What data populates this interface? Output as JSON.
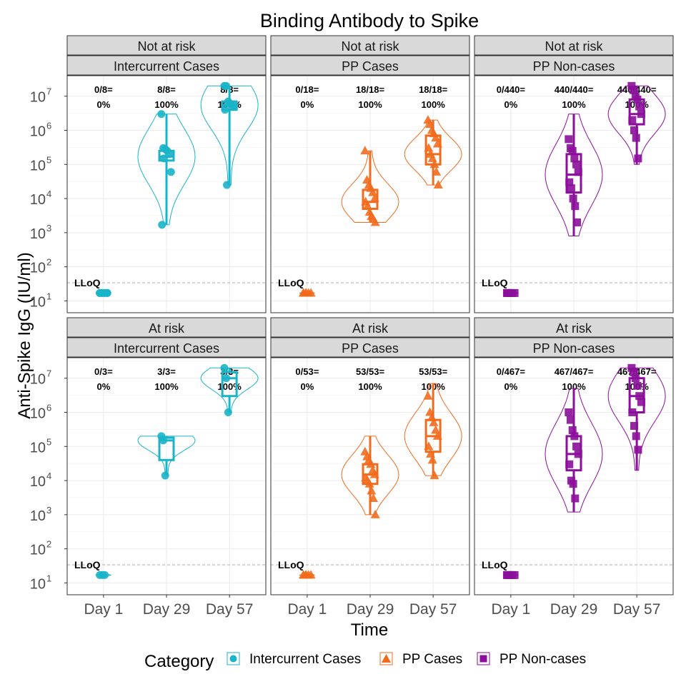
{
  "chart_data": {
    "type": "violin-box",
    "title": "Binding Antibody to Spike",
    "xlabel": "Time",
    "ylabel": "Anti-Spike IgG (IU/ml)",
    "y_scale": "log10",
    "ylim": [
      4.5,
      20000000
    ],
    "grid": true,
    "x_categories": [
      "Day 1",
      "Day 29",
      "Day 57"
    ],
    "y_tick_labels": [
      {
        "value": 10,
        "base": "10",
        "exp": "1"
      },
      {
        "value": 100,
        "base": "10",
        "exp": "2"
      },
      {
        "value": 1000,
        "base": "10",
        "exp": "3"
      },
      {
        "value": 10000,
        "base": "10",
        "exp": "4"
      },
      {
        "value": 100000,
        "base": "10",
        "exp": "5"
      },
      {
        "value": 1000000,
        "base": "10",
        "exp": "6"
      },
      {
        "value": 10000000,
        "base": "10",
        "exp": "7"
      }
    ],
    "lloq": {
      "value": 34,
      "label": "LLoQ"
    },
    "legend": {
      "title": "Category",
      "position": "bottom",
      "entries": [
        {
          "name": "Intercurrent Cases",
          "color": "#1ab4c8",
          "shape": "circle"
        },
        {
          "name": "PP Cases",
          "color": "#f26b1d",
          "shape": "triangle"
        },
        {
          "name": "PP Non-cases",
          "color": "#8b0f9a",
          "shape": "square"
        }
      ]
    },
    "panels": [
      {
        "risk": "Not at risk",
        "group": "Intercurrent Cases",
        "color": "#1ab4c8",
        "shape": "circle",
        "counts": [
          {
            "frac": "0/8=",
            "pct": "0%"
          },
          {
            "frac": "8/8=",
            "pct": "100%"
          },
          {
            "frac": "8/8=",
            "pct": "100%"
          }
        ],
        "days": [
          {
            "points": [
              17,
              17,
              17,
              17,
              17,
              17,
              17,
              17
            ],
            "min": 16,
            "max": 18,
            "q1": 16.8,
            "median": 17,
            "q3": 17.3
          },
          {
            "points": [
              3000000,
              300000,
              280000,
              250000,
              200000,
              60000,
              1700,
              150000
            ],
            "min": 1700,
            "max": 3000000,
            "q1": 130000,
            "median": 170000,
            "q3": 250000
          },
          {
            "points": [
              20000000,
              20000000,
              7000000,
              6000000,
              5000000,
              5000000,
              4000000,
              25000
            ],
            "min": 25000,
            "max": 20000000,
            "q1": 4000000,
            "median": 5500000,
            "q3": 7000000
          }
        ]
      },
      {
        "risk": "Not at risk",
        "group": "PP Cases",
        "color": "#f26b1d",
        "shape": "triangle",
        "counts": [
          {
            "frac": "0/18=",
            "pct": "0%"
          },
          {
            "frac": "18/18=",
            "pct": "100%"
          },
          {
            "frac": "18/18=",
            "pct": "100%"
          }
        ],
        "days": [
          {
            "points": [
              17,
              17,
              17,
              17,
              17,
              17
            ],
            "min": 16,
            "max": 18,
            "q1": 16.8,
            "median": 17,
            "q3": 17.3
          },
          {
            "points": [
              250000,
              35000,
              25000,
              20000,
              15000,
              10000,
              8000,
              6000,
              4000,
              3000,
              2500,
              2000
            ],
            "min": 2000,
            "max": 250000,
            "q1": 5000,
            "median": 8000,
            "q3": 18000
          },
          {
            "points": [
              2000000,
              1500000,
              1000000,
              800000,
              600000,
              400000,
              300000,
              200000,
              150000,
              100000,
              60000,
              25000
            ],
            "min": 25000,
            "max": 2000000,
            "q1": 100000,
            "median": 200000,
            "q3": 700000
          }
        ]
      },
      {
        "risk": "Not at risk",
        "group": "PP Non-cases",
        "color": "#8b0f9a",
        "shape": "square",
        "counts": [
          {
            "frac": "0/440=",
            "pct": "0%"
          },
          {
            "frac": "440/440=",
            "pct": "100%"
          },
          {
            "frac": "440/440=",
            "pct": "100%"
          }
        ],
        "days": [
          {
            "points": [
              17,
              17,
              17,
              17,
              17,
              17
            ],
            "min": 16,
            "max": 18,
            "q1": 16.8,
            "median": 17,
            "q3": 17.3
          },
          {
            "points": [
              550000,
              300000,
              250000,
              150000,
              100000,
              60000,
              30000,
              20000,
              10000,
              6000,
              2000
            ],
            "min": 800,
            "max": 3000000,
            "q1": 15000,
            "median": 50000,
            "q3": 200000
          },
          {
            "points": [
              20000000,
              15000000,
              10000000,
              8000000,
              5000000,
              3000000,
              2000000,
              1000000,
              600000,
              150000
            ],
            "min": 100000,
            "max": 20000000,
            "q1": 1500000,
            "median": 3000000,
            "q3": 8000000
          }
        ]
      },
      {
        "risk": "At risk",
        "group": "Intercurrent Cases",
        "color": "#1ab4c8",
        "shape": "circle",
        "counts": [
          {
            "frac": "0/3=",
            "pct": "0%"
          },
          {
            "frac": "3/3=",
            "pct": "100%"
          },
          {
            "frac": "3/3=",
            "pct": "100%"
          }
        ],
        "days": [
          {
            "points": [
              17,
              17,
              17
            ],
            "min": 16,
            "max": 18,
            "q1": 16.8,
            "median": 17,
            "q3": 17.3
          },
          {
            "points": [
              200000,
              150000,
              14000
            ],
            "min": 14000,
            "max": 200000,
            "q1": 40000,
            "median": 150000,
            "q3": 180000
          },
          {
            "points": [
              20000000,
              10000000,
              1000000
            ],
            "min": 1000000,
            "max": 20000000,
            "q1": 3000000,
            "median": 10000000,
            "q3": 15000000
          }
        ]
      },
      {
        "risk": "At risk",
        "group": "PP Cases",
        "color": "#f26b1d",
        "shape": "triangle",
        "counts": [
          {
            "frac": "0/53=",
            "pct": "0%"
          },
          {
            "frac": "53/53=",
            "pct": "100%"
          },
          {
            "frac": "53/53=",
            "pct": "100%"
          }
        ],
        "days": [
          {
            "points": [
              17,
              17,
              17,
              17,
              17,
              17
            ],
            "min": 16,
            "max": 18,
            "q1": 16.8,
            "median": 17,
            "q3": 17.3
          },
          {
            "points": [
              70000,
              50000,
              40000,
              30000,
              20000,
              15000,
              12000,
              10000,
              8000,
              5000,
              3000,
              1000
            ],
            "min": 1000,
            "max": 200000,
            "q1": 8000,
            "median": 15000,
            "q3": 30000
          },
          {
            "points": [
              3000000,
              1000000,
              700000,
              500000,
              300000,
              200000,
              100000,
              60000,
              40000,
              14000
            ],
            "min": 14000,
            "max": 7000000,
            "q1": 70000,
            "median": 200000,
            "q3": 600000
          }
        ]
      },
      {
        "risk": "At risk",
        "group": "PP Non-cases",
        "color": "#8b0f9a",
        "shape": "square",
        "counts": [
          {
            "frac": "0/467=",
            "pct": "0%"
          },
          {
            "frac": "467/467=",
            "pct": "100%"
          },
          {
            "frac": "467/467=",
            "pct": "100%"
          }
        ],
        "days": [
          {
            "points": [
              17,
              17,
              17,
              17,
              17,
              17
            ],
            "min": 16,
            "max": 18,
            "q1": 16.8,
            "median": 17,
            "q3": 17.3
          },
          {
            "points": [
              1000000,
              600000,
              300000,
              200000,
              100000,
              60000,
              30000,
              10000,
              8000,
              3000
            ],
            "min": 1200,
            "max": 5000000,
            "q1": 20000,
            "median": 60000,
            "q3": 200000
          },
          {
            "points": [
              20000000,
              15000000,
              10000000,
              6000000,
              3000000,
              2000000,
              1000000,
              400000,
              200000,
              80000
            ],
            "min": 20000,
            "max": 20000000,
            "q1": 1000000,
            "median": 3000000,
            "q3": 10000000
          }
        ]
      }
    ]
  }
}
